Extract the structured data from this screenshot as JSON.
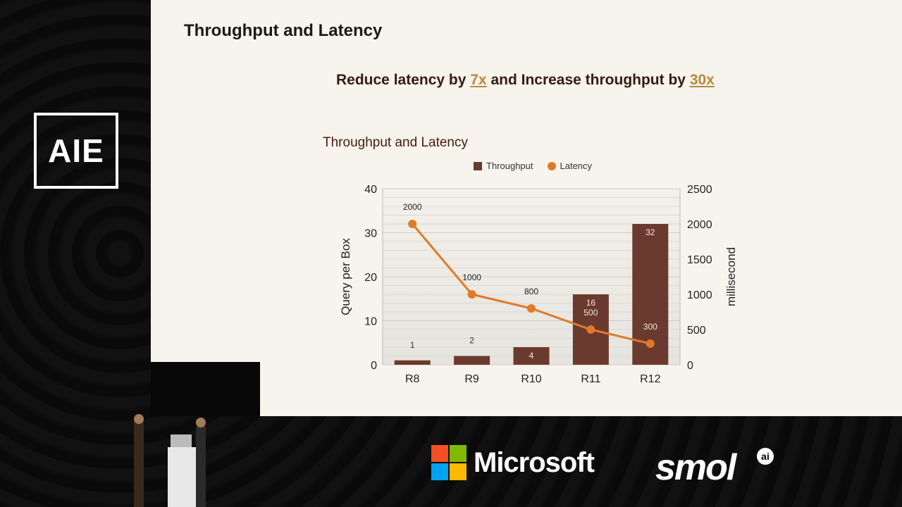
{
  "slide": {
    "title": "Throughput and Latency",
    "headline": {
      "pre": "Reduce latency by ",
      "latency_factor": "7x",
      "mid": " and Increase throughput by ",
      "throughput_factor": "30x"
    }
  },
  "event_logo": "AIE",
  "sponsors": {
    "microsoft": "Microsoft",
    "smol": "smol",
    "smol_badge": "ai"
  },
  "colors": {
    "bar": "#6b3a2e",
    "line": "#e07a2a",
    "accent": "#b98a3e"
  },
  "chart_data": {
    "type": "bar",
    "title": "Throughput and Latency",
    "categories": [
      "R8",
      "R9",
      "R10",
      "R11",
      "R12"
    ],
    "series": [
      {
        "name": "Throughput",
        "type": "bar",
        "axis": "left",
        "values": [
          1,
          2,
          4,
          16,
          32
        ]
      },
      {
        "name": "Latency",
        "type": "line",
        "axis": "right",
        "values": [
          2000,
          1000,
          800,
          500,
          300
        ]
      }
    ],
    "ylabel": "Query per Box",
    "ylabel_right": "millisecond",
    "ylim": [
      0,
      40
    ],
    "ylim_right": [
      0,
      2500
    ],
    "yticks": [
      0,
      10,
      20,
      30,
      40
    ],
    "yticks_right": [
      0,
      500,
      1000,
      1500,
      2000,
      2500
    ],
    "grid": true,
    "legend": "top"
  }
}
